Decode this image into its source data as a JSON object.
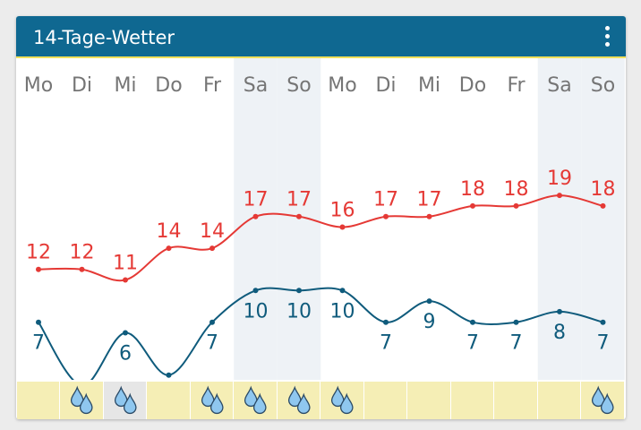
{
  "header": {
    "title": "14-Tage-Wetter",
    "menu_icon": "more-vert-icon"
  },
  "colors": {
    "header_bg": "#0f6891",
    "header_accent": "#f0e05a",
    "max_line": "#e53935",
    "min_line": "#0f5b7c",
    "weekend_shade": "#eef2f6",
    "precip_bg": "#f5eeb5",
    "precip_highlight": "#e6e6e6"
  },
  "chart_data": {
    "type": "line",
    "categories": [
      "Mo",
      "Di",
      "Mi",
      "Do",
      "Fr",
      "Sa",
      "So",
      "Mo",
      "Di",
      "Mi",
      "Do",
      "Fr",
      "Sa",
      "So"
    ],
    "weekend_indices": [
      5,
      6,
      12,
      13
    ],
    "series": [
      {
        "key": "max",
        "values": [
          12,
          12,
          11,
          14,
          14,
          17,
          17,
          16,
          17,
          17,
          18,
          18,
          19,
          18
        ]
      },
      {
        "key": "min",
        "values": [
          7,
          1,
          6,
          2,
          7,
          10,
          10,
          10,
          7,
          9,
          7,
          7,
          8,
          7
        ]
      }
    ]
  },
  "precipitation": {
    "icon": "raindrops-icon",
    "days": [
      {
        "rain": false,
        "highlight": false
      },
      {
        "rain": true,
        "highlight": false
      },
      {
        "rain": true,
        "highlight": true
      },
      {
        "rain": false,
        "highlight": false
      },
      {
        "rain": true,
        "highlight": false
      },
      {
        "rain": true,
        "highlight": false
      },
      {
        "rain": true,
        "highlight": false
      },
      {
        "rain": true,
        "highlight": false
      },
      {
        "rain": false,
        "highlight": false
      },
      {
        "rain": false,
        "highlight": false
      },
      {
        "rain": false,
        "highlight": false
      },
      {
        "rain": false,
        "highlight": false
      },
      {
        "rain": false,
        "highlight": false
      },
      {
        "rain": true,
        "highlight": false
      }
    ]
  }
}
